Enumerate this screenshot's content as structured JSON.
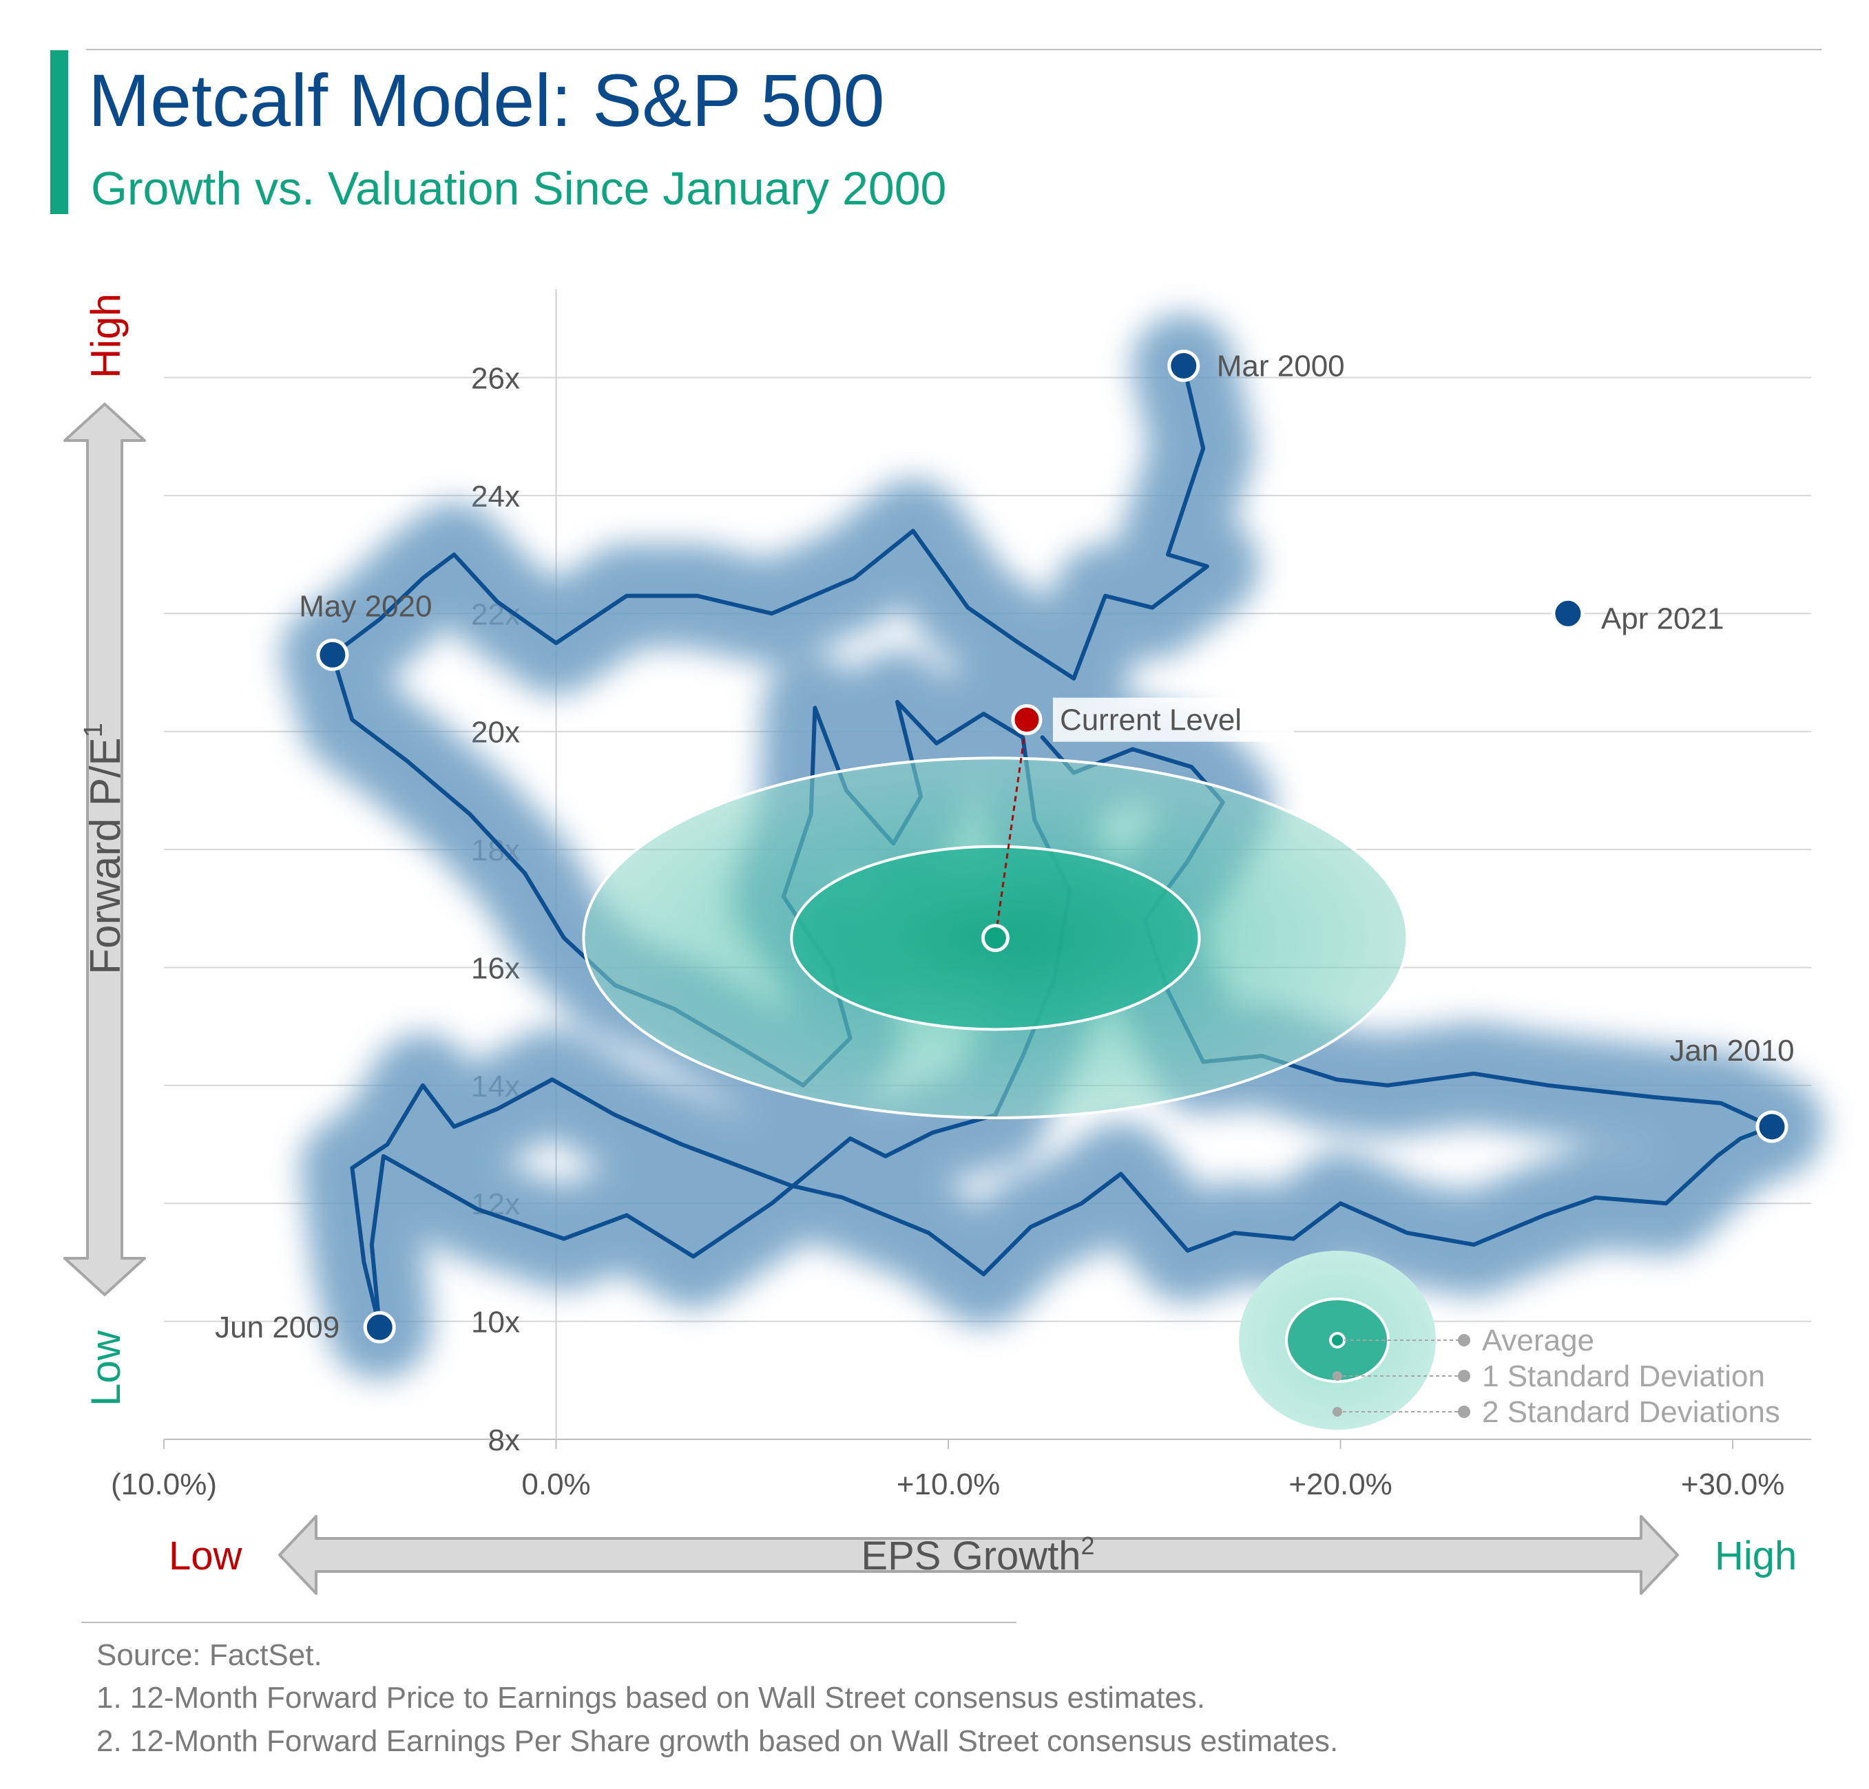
{
  "header": {
    "title": "Metcalf Model: S&P 500",
    "subtitle": "Growth vs. Valuation Since January 2000"
  },
  "colors": {
    "navy": "#0b4a8a",
    "path": "#0d4f91",
    "halo": "#6d9dc3",
    "teal": "#10a37f",
    "red": "#c00000",
    "current": "#c00000",
    "grid": "#d6d6d6",
    "arrow_fill": "#d9d9d9",
    "arrow_stroke": "#a6a6a6"
  },
  "footnotes": [
    "Source: FactSet.",
    "1. 12-Month Forward Price to Earnings based on Wall Street consensus estimates.",
    "2. 12-Month Forward Earnings Per Share growth based on Wall Street consensus estimates."
  ],
  "chart_data": {
    "type": "scatter",
    "mode": "connected path (monthly, Jan 2000 to present)",
    "xlabel": "EPS Growth",
    "xlabel_superscript": "2",
    "ylabel": "Forward P/E",
    "ylabel_superscript": "1",
    "x_range": [
      -10,
      32
    ],
    "y_range": [
      8,
      27.5
    ],
    "x_ticks": [
      -10,
      0,
      10,
      20,
      30
    ],
    "x_tick_labels": [
      "(10.0%)",
      "0.0%",
      "+10.0%",
      "+20.0%",
      "+30.0%"
    ],
    "y_ticks": [
      8,
      10,
      12,
      14,
      16,
      18,
      20,
      22,
      24,
      26
    ],
    "y_tick_labels": [
      "8x",
      "10x",
      "12x",
      "14x",
      "16x",
      "18x",
      "20x",
      "22x",
      "24x",
      "26x"
    ],
    "grid": "horizontal",
    "y_axis_scale_labels": {
      "high": "High",
      "low": "Low"
    },
    "x_axis_scale_labels": {
      "low": "Low",
      "high": "High"
    },
    "labeled_points": [
      {
        "label": "Mar 2000",
        "x": 16.0,
        "y": 26.2
      },
      {
        "label": "Apr 2021",
        "x": 25.8,
        "y": 22.0
      },
      {
        "label": "May 2020",
        "x": -5.7,
        "y": 21.3
      },
      {
        "label": "Jan 2010",
        "x": 31.0,
        "y": 13.3
      },
      {
        "label": "Jun 2009",
        "x": -4.5,
        "y": 9.9
      }
    ],
    "current": {
      "label": "Current Level",
      "x": 12.0,
      "y": 20.2
    },
    "average": {
      "x": 11.2,
      "y": 16.5
    },
    "std_dev_1": {
      "x_half_width": 5.2,
      "y_half_height": 1.55
    },
    "std_dev_2": {
      "x_half_width": 10.5,
      "y_half_height": 3.05
    },
    "legend": {
      "position": "bottom-right",
      "items": [
        "Average",
        "1 Standard Deviation",
        "2 Standard Deviations"
      ]
    },
    "path": [
      [
        16.0,
        26.2
      ],
      [
        16.5,
        24.8
      ],
      [
        15.6,
        23.0
      ],
      [
        16.6,
        22.8
      ],
      [
        15.2,
        22.1
      ],
      [
        14.0,
        22.3
      ],
      [
        13.2,
        20.9
      ],
      [
        11.8,
        21.5
      ],
      [
        10.5,
        22.1
      ],
      [
        9.1,
        23.4
      ],
      [
        7.6,
        22.6
      ],
      [
        5.5,
        22.0
      ],
      [
        3.6,
        22.3
      ],
      [
        1.8,
        22.3
      ],
      [
        0.0,
        21.5
      ],
      [
        -1.5,
        22.2
      ],
      [
        -2.6,
        23.0
      ],
      [
        -3.4,
        22.6
      ],
      [
        -4.5,
        21.9
      ],
      [
        -5.7,
        21.3
      ],
      [
        -5.2,
        20.2
      ],
      [
        -3.8,
        19.5
      ],
      [
        -2.2,
        18.6
      ],
      [
        -0.8,
        17.6
      ],
      [
        0.2,
        16.5
      ],
      [
        1.5,
        15.7
      ],
      [
        3.0,
        15.3
      ],
      [
        4.8,
        14.6
      ],
      [
        6.3,
        14.0
      ],
      [
        7.5,
        14.8
      ],
      [
        7.0,
        16.0
      ],
      [
        5.8,
        17.2
      ],
      [
        6.5,
        18.6
      ],
      [
        6.6,
        20.4
      ],
      [
        7.4,
        19.0
      ],
      [
        8.6,
        18.1
      ],
      [
        9.3,
        18.9
      ],
      [
        8.7,
        20.5
      ],
      [
        9.7,
        19.8
      ],
      [
        10.9,
        20.3
      ],
      [
        11.9,
        19.9
      ],
      [
        12.2,
        18.5
      ],
      [
        13.1,
        17.3
      ],
      [
        12.7,
        15.8
      ],
      [
        11.9,
        14.5
      ],
      [
        11.2,
        13.5
      ],
      [
        9.6,
        13.2
      ],
      [
        8.4,
        12.8
      ],
      [
        7.5,
        13.1
      ],
      [
        5.5,
        12.0
      ],
      [
        3.5,
        11.1
      ],
      [
        1.8,
        11.8
      ],
      [
        0.2,
        11.4
      ],
      [
        -2.0,
        11.9
      ],
      [
        -4.4,
        12.8
      ],
      [
        -4.7,
        11.3
      ],
      [
        -4.5,
        9.9
      ],
      [
        -4.9,
        11.0
      ],
      [
        -5.2,
        12.6
      ],
      [
        -4.3,
        13.0
      ],
      [
        -3.4,
        14.0
      ],
      [
        -2.6,
        13.3
      ],
      [
        -1.5,
        13.6
      ],
      [
        -0.1,
        14.1
      ],
      [
        1.5,
        13.5
      ],
      [
        3.2,
        13.0
      ],
      [
        4.8,
        12.6
      ],
      [
        6.0,
        12.3
      ],
      [
        7.3,
        12.1
      ],
      [
        9.5,
        11.5
      ],
      [
        10.9,
        10.8
      ],
      [
        12.1,
        11.6
      ],
      [
        13.4,
        12.0
      ],
      [
        14.4,
        12.5
      ],
      [
        16.1,
        11.2
      ],
      [
        17.3,
        11.5
      ],
      [
        18.8,
        11.4
      ],
      [
        20.0,
        12.0
      ],
      [
        21.7,
        11.5
      ],
      [
        23.4,
        11.3
      ],
      [
        25.2,
        11.8
      ],
      [
        26.5,
        12.1
      ],
      [
        28.3,
        12.0
      ],
      [
        29.6,
        12.8
      ],
      [
        30.2,
        13.1
      ],
      [
        31.0,
        13.3
      ],
      [
        29.7,
        13.7
      ],
      [
        28.0,
        13.8
      ],
      [
        25.3,
        14.0
      ],
      [
        23.4,
        14.2
      ],
      [
        21.2,
        14.0
      ],
      [
        19.9,
        14.1
      ],
      [
        18.0,
        14.5
      ],
      [
        16.5,
        14.4
      ],
      [
        15.6,
        15.6
      ],
      [
        15.0,
        16.8
      ],
      [
        16.1,
        17.8
      ],
      [
        17.0,
        18.8
      ],
      [
        16.2,
        19.4
      ],
      [
        14.7,
        19.7
      ],
      [
        13.2,
        19.3
      ],
      [
        12.4,
        19.9
      ]
    ]
  }
}
